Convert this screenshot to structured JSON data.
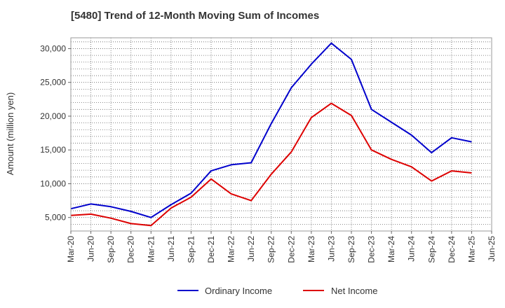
{
  "chart_data": {
    "type": "line",
    "title": "[5480]  Trend of 12-Month Moving Sum of Incomes",
    "xlabel": "",
    "ylabel": "Amount (million yen)",
    "ylim": [
      3000,
      31600
    ],
    "yticks": [
      5000,
      10000,
      15000,
      20000,
      25000,
      30000
    ],
    "ytick_labels": [
      "5,000",
      "10,000",
      "15,000",
      "20,000",
      "25,000",
      "30,000"
    ],
    "categories": [
      "Mar-20",
      "Jun-20",
      "Sep-20",
      "Dec-20",
      "Mar-21",
      "Jun-21",
      "Sep-21",
      "Dec-21",
      "Mar-22",
      "Jun-22",
      "Sep-22",
      "Dec-22",
      "Mar-23",
      "Jun-23",
      "Sep-23",
      "Dec-23",
      "Mar-24",
      "Jun-24",
      "Sep-24",
      "Dec-24",
      "Mar-25",
      "Jun-25"
    ],
    "series": [
      {
        "name": "Ordinary Income",
        "color": "#0000cc",
        "values": [
          6300,
          7000,
          6600,
          5900,
          5000,
          6900,
          8600,
          11900,
          12800,
          13100,
          18900,
          24200,
          27700,
          30800,
          28400,
          21000,
          19100,
          17200,
          14600,
          16800,
          16200,
          null
        ]
      },
      {
        "name": "Net Income",
        "color": "#dd0000",
        "values": [
          5300,
          5500,
          4900,
          4100,
          3800,
          6400,
          8000,
          10700,
          8500,
          7500,
          11400,
          14700,
          19800,
          21900,
          20100,
          15000,
          13600,
          12500,
          10400,
          11900,
          11600,
          null
        ]
      }
    ],
    "grid": true,
    "legend_position": "bottom-center"
  }
}
